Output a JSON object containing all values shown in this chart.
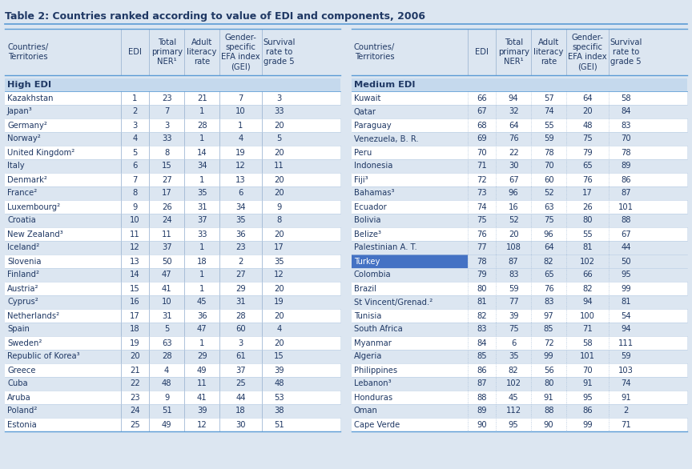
{
  "title": "Table 2: Countries ranked according to value of EDI and components, 2006",
  "bg_color": "#dce6f1",
  "white": "#ffffff",
  "section_color": "#c5d9ed",
  "turkey_bg": "#4472c4",
  "turkey_text": "#ffffff",
  "text_color": "#1f3864",
  "border_color": "#5b9bd5",
  "divider_color": "#b8cce4",
  "col_sep_color": "#a0b8d4",
  "section_left": "High EDI",
  "section_right": "Medium EDI",
  "col_headers": [
    "Countries/\nTerritories",
    "EDI",
    "Total\nprimary\nNER¹",
    "Adult\nliteracy\nrate",
    "Gender-\nspecific\nEFA index\n(GEI)",
    "Survival\nrate to\ngrade 5"
  ],
  "left_rows": [
    [
      "Kazakhstan",
      "1",
      "23",
      "21",
      "7",
      "3"
    ],
    [
      "Japan³",
      "2",
      "7",
      "1",
      "10",
      "33"
    ],
    [
      "Germany²",
      "3",
      "3",
      "28",
      "1",
      "20"
    ],
    [
      "Norway²",
      "4",
      "33",
      "1",
      "4",
      "5"
    ],
    [
      "United Kingdom²",
      "5",
      "8",
      "14",
      "19",
      "20"
    ],
    [
      "Italy",
      "6",
      "15",
      "34",
      "12",
      "11"
    ],
    [
      "Denmark²",
      "7",
      "27",
      "1",
      "13",
      "20"
    ],
    [
      "France²",
      "8",
      "17",
      "35",
      "6",
      "20"
    ],
    [
      "Luxembourg²",
      "9",
      "26",
      "31",
      "34",
      "9"
    ],
    [
      "Croatia",
      "10",
      "24",
      "37",
      "35",
      "8"
    ],
    [
      "New Zealand³",
      "11",
      "11",
      "33",
      "36",
      "20"
    ],
    [
      "Iceland²",
      "12",
      "37",
      "1",
      "23",
      "17"
    ],
    [
      "Slovenia",
      "13",
      "50",
      "18",
      "2",
      "35"
    ],
    [
      "Finland²",
      "14",
      "47",
      "1",
      "27",
      "12"
    ],
    [
      "Austria²",
      "15",
      "41",
      "1",
      "29",
      "20"
    ],
    [
      "Cyprus²",
      "16",
      "10",
      "45",
      "31",
      "19"
    ],
    [
      "Netherlands²",
      "17",
      "31",
      "36",
      "28",
      "20"
    ],
    [
      "Spain",
      "18",
      "5",
      "47",
      "60",
      "4"
    ],
    [
      "Sweden²",
      "19",
      "63",
      "1",
      "3",
      "20"
    ],
    [
      "Republic of Korea³",
      "20",
      "28",
      "29",
      "61",
      "15"
    ],
    [
      "Greece",
      "21",
      "4",
      "49",
      "37",
      "39"
    ],
    [
      "Cuba",
      "22",
      "48",
      "11",
      "25",
      "48"
    ],
    [
      "Aruba",
      "23",
      "9",
      "41",
      "44",
      "53"
    ],
    [
      "Poland²",
      "24",
      "51",
      "39",
      "18",
      "38"
    ],
    [
      "Estonia",
      "25",
      "49",
      "12",
      "30",
      "51"
    ]
  ],
  "right_rows": [
    [
      "Kuwait",
      "66",
      "94",
      "57",
      "64",
      "58"
    ],
    [
      "Qatar",
      "67",
      "32",
      "74",
      "20",
      "84"
    ],
    [
      "Paraguay",
      "68",
      "64",
      "55",
      "48",
      "83"
    ],
    [
      "Venezuela, B. R.",
      "69",
      "76",
      "59",
      "75",
      "70"
    ],
    [
      "Peru",
      "70",
      "22",
      "78",
      "79",
      "78"
    ],
    [
      "Indonesia",
      "71",
      "30",
      "70",
      "65",
      "89"
    ],
    [
      "Fiji³",
      "72",
      "67",
      "60",
      "76",
      "86"
    ],
    [
      "Bahamas³",
      "73",
      "96",
      "52",
      "17",
      "87"
    ],
    [
      "Ecuador",
      "74",
      "16",
      "63",
      "26",
      "101"
    ],
    [
      "Bolivia",
      "75",
      "52",
      "75",
      "80",
      "88"
    ],
    [
      "Belize³",
      "76",
      "20",
      "96",
      "55",
      "67"
    ],
    [
      "Palestinian A. T.",
      "77",
      "108",
      "64",
      "81",
      "44"
    ],
    [
      "Turkey",
      "78",
      "87",
      "82",
      "102",
      "50"
    ],
    [
      "Colombia",
      "79",
      "83",
      "65",
      "66",
      "95"
    ],
    [
      "Brazil",
      "80",
      "59",
      "76",
      "82",
      "99"
    ],
    [
      "St Vincent/Grenad.²",
      "81",
      "77",
      "83",
      "94",
      "81"
    ],
    [
      "Tunisia",
      "82",
      "39",
      "97",
      "100",
      "54"
    ],
    [
      "South Africa",
      "83",
      "75",
      "85",
      "71",
      "94"
    ],
    [
      "Myanmar",
      "84",
      "6",
      "72",
      "58",
      "111"
    ],
    [
      "Algeria",
      "85",
      "35",
      "99",
      "101",
      "59"
    ],
    [
      "Philippines",
      "86",
      "82",
      "56",
      "70",
      "103"
    ],
    [
      "Lebanon³",
      "87",
      "102",
      "80",
      "91",
      "74"
    ],
    [
      "Honduras",
      "88",
      "45",
      "91",
      "95",
      "91"
    ],
    [
      "Oman",
      "89",
      "112",
      "88",
      "86",
      "2"
    ],
    [
      "Cape Verde",
      "90",
      "95",
      "90",
      "99",
      "71"
    ]
  ],
  "turkey_row_index": 12,
  "figwidth": 8.64,
  "figheight": 5.86,
  "dpi": 100
}
